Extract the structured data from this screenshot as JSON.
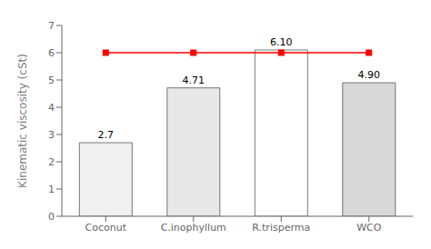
{
  "chart_data": {
    "type": "bar",
    "categories": [
      "Coconut",
      "C.inophyllum",
      "R.trisperma",
      "WCO"
    ],
    "series": [
      {
        "type": "bar",
        "values": [
          2.7,
          4.71,
          6.1,
          4.9
        ],
        "value_labels": [
          "2.7",
          "4.71",
          "6.10",
          "4.90"
        ],
        "colors": [
          "#f0f0f0",
          "#e8e8e8",
          "white",
          "#d8d8d8"
        ]
      },
      {
        "type": "line",
        "values": [
          6.0,
          6.0,
          6.0,
          6.0
        ],
        "color": "red",
        "marker": "square"
      }
    ],
    "ylabel": "Kinematic viscosity (cSt)",
    "ylim": [
      0,
      7
    ],
    "yticks": [
      0,
      1,
      2,
      3,
      4,
      5,
      6,
      7
    ],
    "data_labels": true,
    "grid": false
  }
}
